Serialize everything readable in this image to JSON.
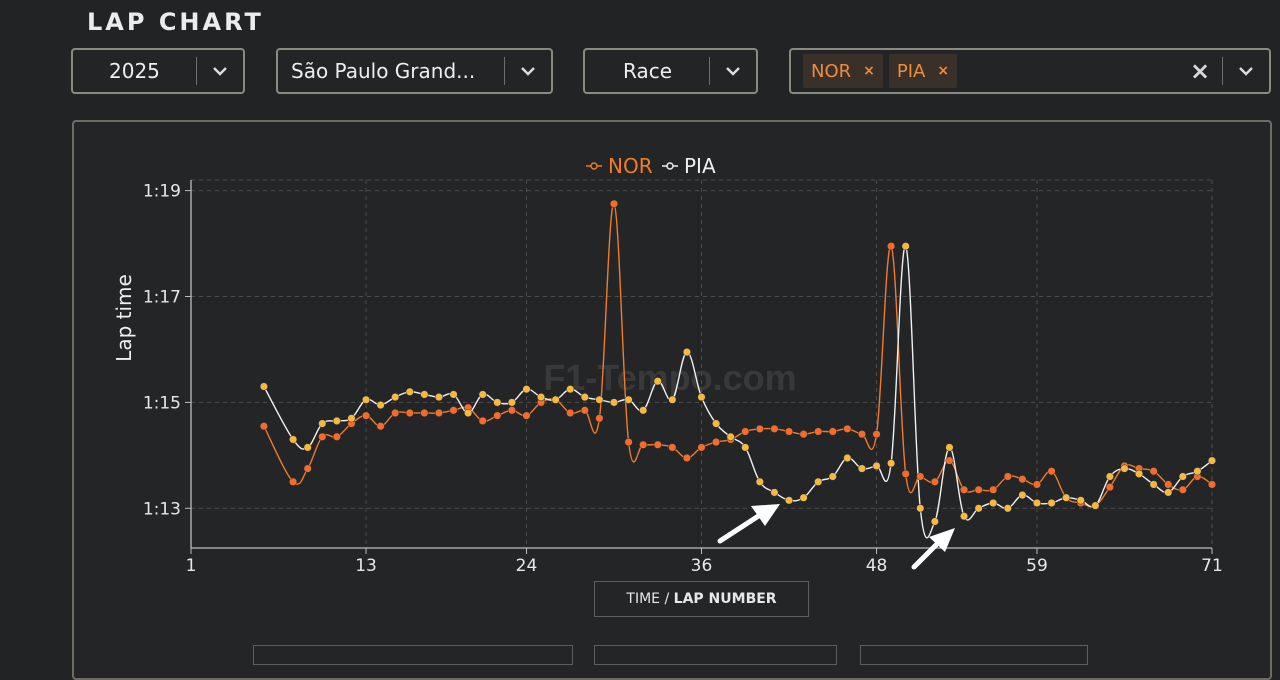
{
  "page_title": "LAP CHART",
  "filters": {
    "year": "2025",
    "event": "São Paulo Grand...",
    "session": "Race",
    "drivers": [
      {
        "code": "NOR",
        "remove": "×"
      },
      {
        "code": "PIA",
        "remove": "×"
      }
    ],
    "clear": "×"
  },
  "watermark": "F1-Tempo.com",
  "axis_mode": {
    "prefix": "TIME / ",
    "active": "LAP NUMBER"
  },
  "colors": {
    "nor": "#f07c28",
    "pia": "#f0f0f0",
    "nor_marker": "#f26c2e",
    "pia_marker": "#f5b942",
    "grid": "#4d4d4d"
  },
  "chart_data": {
    "type": "line",
    "ylabel": "Lap time",
    "xlabel": "LAP NUMBER",
    "xlim": [
      1,
      71
    ],
    "ylim": [
      72.25,
      79.2
    ],
    "x_ticks": [
      1,
      13,
      24,
      36,
      48,
      59,
      71
    ],
    "y_ticks": [
      {
        "value": 73,
        "label": "1:13"
      },
      {
        "value": 75,
        "label": "1:15"
      },
      {
        "value": 77,
        "label": "1:17"
      },
      {
        "value": 79,
        "label": "1:19"
      }
    ],
    "legend": [
      "NOR",
      "PIA"
    ],
    "series": [
      {
        "name": "NOR",
        "x": [
          6,
          8,
          9,
          10,
          11,
          12,
          13,
          14,
          15,
          16,
          17,
          18,
          19,
          20,
          21,
          22,
          23,
          24,
          25,
          26,
          27,
          28,
          29,
          30,
          31,
          32,
          33,
          34,
          35,
          36,
          37,
          38,
          39,
          40,
          41,
          42,
          43,
          44,
          45,
          46,
          47,
          48,
          49,
          50,
          51,
          52,
          53,
          54,
          55,
          56,
          57,
          58,
          59,
          60,
          61,
          62,
          63,
          64,
          65,
          66,
          67,
          68,
          69,
          70,
          71
        ],
        "y": [
          74.55,
          73.5,
          73.75,
          74.35,
          74.35,
          74.6,
          74.75,
          74.55,
          74.8,
          74.8,
          74.8,
          74.8,
          74.85,
          74.9,
          74.65,
          74.75,
          74.85,
          74.75,
          75.0,
          75.05,
          74.8,
          74.85,
          74.7,
          78.75,
          74.25,
          74.2,
          74.2,
          74.15,
          73.95,
          74.15,
          74.25,
          74.3,
          74.45,
          74.5,
          74.5,
          74.45,
          74.4,
          74.45,
          74.45,
          74.5,
          74.4,
          74.4,
          77.95,
          73.65,
          73.6,
          73.5,
          73.9,
          73.35,
          73.35,
          73.35,
          73.6,
          73.55,
          73.45,
          73.7,
          73.2,
          73.1,
          73.05,
          73.4,
          73.8,
          73.75,
          73.7,
          73.45,
          73.35,
          73.6,
          73.45
        ]
      },
      {
        "name": "PIA",
        "x": [
          6,
          8,
          9,
          10,
          11,
          12,
          13,
          14,
          15,
          16,
          17,
          18,
          19,
          20,
          21,
          22,
          23,
          24,
          25,
          26,
          27,
          28,
          29,
          30,
          31,
          32,
          33,
          34,
          35,
          36,
          37,
          38,
          39,
          40,
          41,
          42,
          43,
          44,
          45,
          46,
          47,
          48,
          49,
          50,
          51,
          52,
          53,
          54,
          55,
          56,
          57,
          58,
          59,
          60,
          61,
          62,
          63,
          64,
          65,
          66,
          67,
          68,
          69,
          70,
          71
        ],
        "y": [
          75.3,
          74.3,
          74.15,
          74.6,
          74.65,
          74.7,
          75.05,
          74.95,
          75.1,
          75.2,
          75.15,
          75.1,
          75.15,
          74.8,
          75.15,
          75.0,
          75.0,
          75.25,
          75.1,
          75.05,
          75.25,
          75.1,
          75.05,
          75.0,
          75.05,
          74.85,
          75.4,
          75.05,
          75.95,
          75.1,
          74.6,
          74.35,
          74.15,
          73.5,
          73.3,
          73.15,
          73.2,
          73.5,
          73.6,
          73.95,
          73.75,
          73.8,
          73.85,
          77.95,
          73.0,
          72.75,
          74.15,
          72.85,
          73.0,
          73.1,
          73.0,
          73.25,
          73.1,
          73.1,
          73.2,
          73.15,
          73.05,
          73.6,
          73.75,
          73.65,
          73.45,
          73.3,
          73.6,
          73.7,
          73.9
        ]
      }
    ]
  }
}
